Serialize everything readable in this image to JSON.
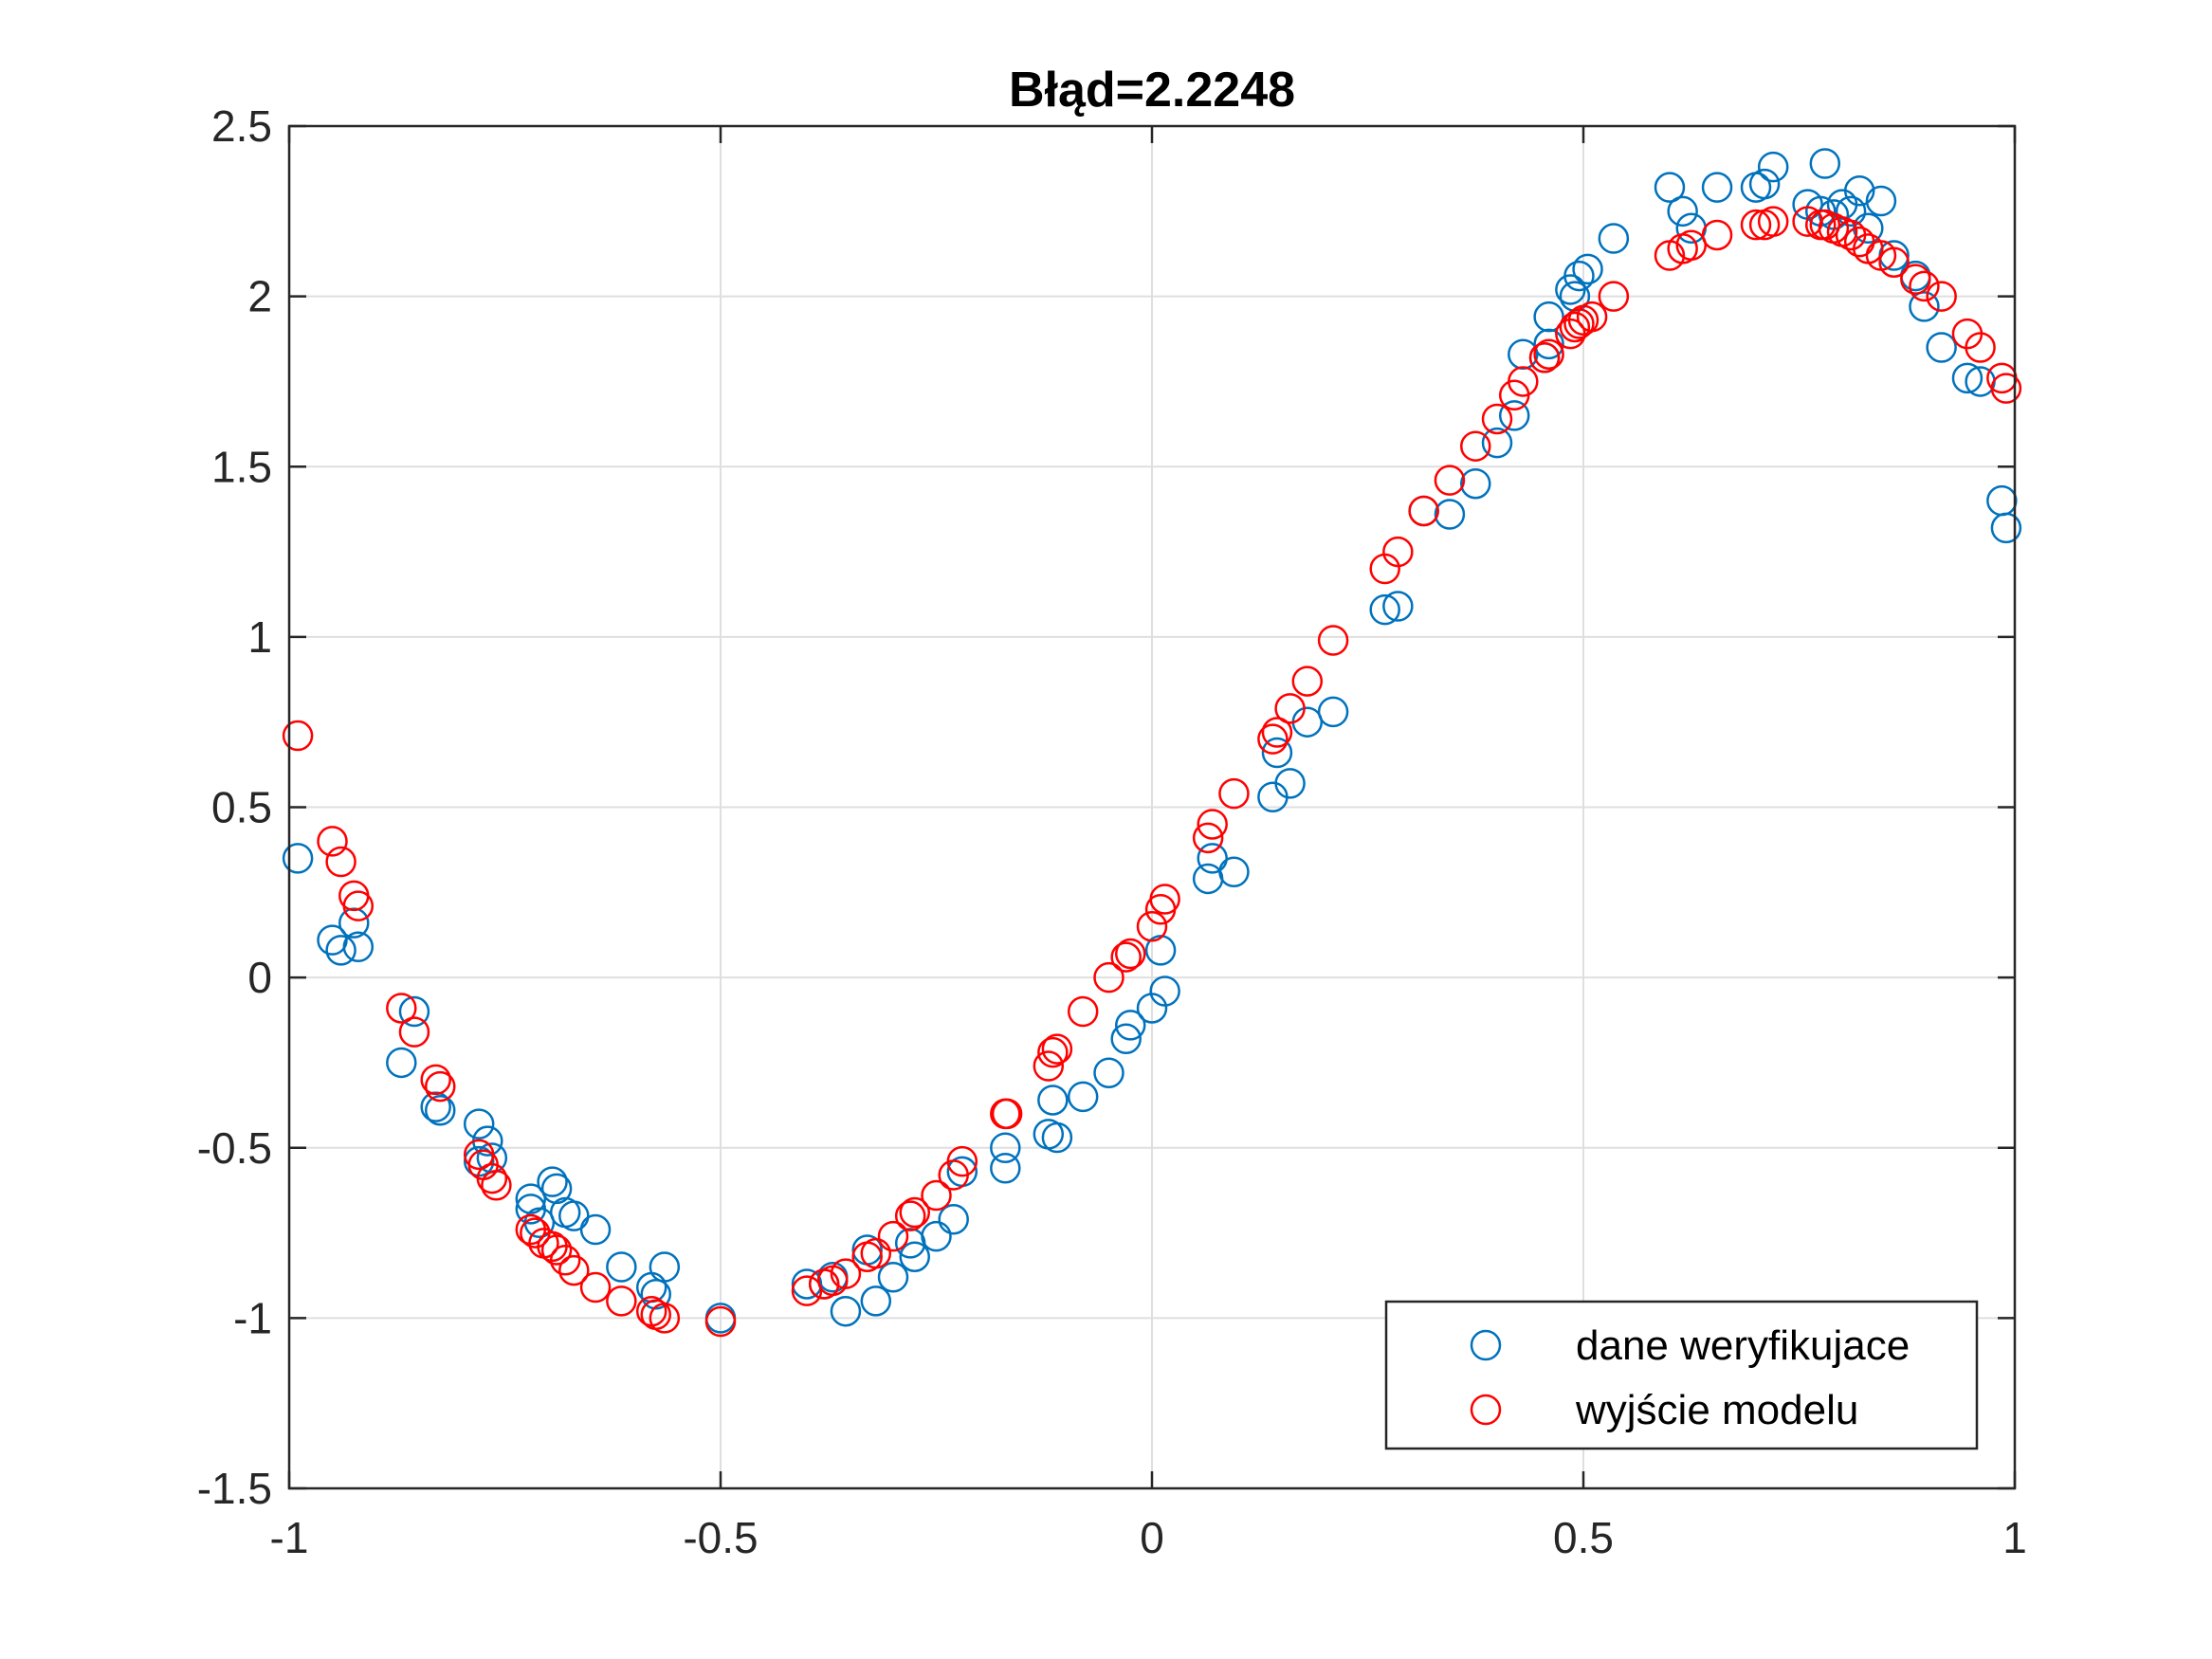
{
  "chart_data": {
    "type": "scatter",
    "title": "Błąd=2.2248",
    "xlabel": "",
    "ylabel": "",
    "xlim": [
      -1,
      1
    ],
    "ylim": [
      -1.5,
      2.5
    ],
    "xticks": [
      -1,
      -0.5,
      0,
      0.5,
      1
    ],
    "xtick_labels": [
      "-1",
      "-0.5",
      "0",
      "0.5",
      "1"
    ],
    "yticks": [
      -1.5,
      -1,
      -0.5,
      0,
      0.5,
      1,
      1.5,
      2,
      2.5
    ],
    "ytick_labels": [
      "-1.5",
      "-1",
      "-0.5",
      "0",
      "0.5",
      "1",
      "1.5",
      "2",
      "2.5"
    ],
    "grid": true,
    "legend_position": "bottom-right",
    "series": [
      {
        "name": "dane weryfikujace",
        "color": "#0072BD",
        "marker": "circle",
        "points": [
          [
            -0.99,
            0.35
          ],
          [
            -0.95,
            0.11
          ],
          [
            -0.94,
            0.08
          ],
          [
            -0.925,
            0.16
          ],
          [
            -0.92,
            0.09
          ],
          [
            -0.87,
            -0.25
          ],
          [
            -0.855,
            -0.1
          ],
          [
            -0.83,
            -0.38
          ],
          [
            -0.825,
            -0.39
          ],
          [
            -0.78,
            -0.43
          ],
          [
            -0.77,
            -0.48
          ],
          [
            -0.765,
            -0.53
          ],
          [
            -0.78,
            -0.54
          ],
          [
            -0.72,
            -0.65
          ],
          [
            -0.72,
            -0.68
          ],
          [
            -0.71,
            -0.72
          ],
          [
            -0.695,
            -0.6
          ],
          [
            -0.69,
            -0.62
          ],
          [
            -0.68,
            -0.69
          ],
          [
            -0.67,
            -0.7
          ],
          [
            -0.645,
            -0.74
          ],
          [
            -0.615,
            -0.85
          ],
          [
            -0.58,
            -0.91
          ],
          [
            -0.575,
            -0.93
          ],
          [
            -0.565,
            -0.85
          ],
          [
            -0.5,
            -1.0
          ],
          [
            -0.4,
            -0.9
          ],
          [
            -0.38,
            -0.9
          ],
          [
            -0.37,
            -0.88
          ],
          [
            -0.355,
            -0.98
          ],
          [
            -0.33,
            -0.8
          ],
          [
            -0.32,
            -0.95
          ],
          [
            -0.3,
            -0.88
          ],
          [
            -0.28,
            -0.78
          ],
          [
            -0.275,
            -0.82
          ],
          [
            -0.25,
            -0.76
          ],
          [
            -0.23,
            -0.71
          ],
          [
            -0.22,
            -0.57
          ],
          [
            -0.17,
            -0.5
          ],
          [
            -0.17,
            -0.56
          ],
          [
            -0.12,
            -0.46
          ],
          [
            -0.115,
            -0.36
          ],
          [
            -0.11,
            -0.47
          ],
          [
            -0.08,
            -0.35
          ],
          [
            -0.05,
            -0.28
          ],
          [
            -0.03,
            -0.18
          ],
          [
            -0.025,
            -0.14
          ],
          [
            0.0,
            -0.09
          ],
          [
            0.01,
            0.08
          ],
          [
            0.015,
            -0.04
          ],
          [
            0.065,
            0.29
          ],
          [
            0.07,
            0.35
          ],
          [
            0.095,
            0.31
          ],
          [
            0.14,
            0.53
          ],
          [
            0.145,
            0.66
          ],
          [
            0.16,
            0.57
          ],
          [
            0.18,
            0.75
          ],
          [
            0.21,
            0.78
          ],
          [
            0.27,
            1.08
          ],
          [
            0.285,
            1.09
          ],
          [
            0.315,
            1.37
          ],
          [
            0.345,
            1.36
          ],
          [
            0.375,
            1.45
          ],
          [
            0.4,
            1.57
          ],
          [
            0.42,
            1.65
          ],
          [
            0.43,
            1.83
          ],
          [
            0.455,
            1.82
          ],
          [
            0.46,
            1.86
          ],
          [
            0.46,
            1.94
          ],
          [
            0.485,
            2.02
          ],
          [
            0.49,
            2.0
          ],
          [
            0.495,
            2.06
          ],
          [
            0.505,
            2.08
          ],
          [
            0.535,
            2.17
          ],
          [
            0.6,
            2.32
          ],
          [
            0.615,
            2.25
          ],
          [
            0.625,
            2.2
          ],
          [
            0.655,
            2.32
          ],
          [
            0.7,
            2.32
          ],
          [
            0.71,
            2.33
          ],
          [
            0.72,
            2.38
          ],
          [
            0.76,
            2.27
          ],
          [
            0.775,
            2.25
          ],
          [
            0.78,
            2.39
          ],
          [
            0.79,
            2.24
          ],
          [
            0.8,
            2.27
          ],
          [
            0.81,
            2.25
          ],
          [
            0.82,
            2.31
          ],
          [
            0.83,
            2.2
          ],
          [
            0.845,
            2.28
          ],
          [
            0.86,
            2.12
          ],
          [
            0.885,
            2.06
          ],
          [
            0.895,
            1.97
          ],
          [
            0.915,
            1.85
          ],
          [
            0.945,
            1.76
          ],
          [
            0.96,
            1.75
          ],
          [
            0.985,
            1.4
          ],
          [
            0.99,
            1.32
          ]
        ]
      },
      {
        "name": "wyjście modelu",
        "color": "#FF0000",
        "marker": "circle",
        "points": [
          [
            -0.99,
            0.71
          ],
          [
            -0.95,
            0.4
          ],
          [
            -0.94,
            0.34
          ],
          [
            -0.925,
            0.24
          ],
          [
            -0.92,
            0.21
          ],
          [
            -0.87,
            -0.09
          ],
          [
            -0.855,
            -0.16
          ],
          [
            -0.83,
            -0.3
          ],
          [
            -0.825,
            -0.32
          ],
          [
            -0.78,
            -0.52
          ],
          [
            -0.775,
            -0.55
          ],
          [
            -0.765,
            -0.59
          ],
          [
            -0.76,
            -0.61
          ],
          [
            -0.72,
            -0.74
          ],
          [
            -0.715,
            -0.75
          ],
          [
            -0.705,
            -0.78
          ],
          [
            -0.695,
            -0.79
          ],
          [
            -0.69,
            -0.8
          ],
          [
            -0.68,
            -0.83
          ],
          [
            -0.67,
            -0.86
          ],
          [
            -0.645,
            -0.91
          ],
          [
            -0.615,
            -0.95
          ],
          [
            -0.58,
            -0.98
          ],
          [
            -0.575,
            -0.99
          ],
          [
            -0.565,
            -1.0
          ],
          [
            -0.5,
            -1.01
          ],
          [
            -0.4,
            -0.92
          ],
          [
            -0.38,
            -0.9
          ],
          [
            -0.37,
            -0.89
          ],
          [
            -0.355,
            -0.87
          ],
          [
            -0.33,
            -0.82
          ],
          [
            -0.32,
            -0.81
          ],
          [
            -0.3,
            -0.76
          ],
          [
            -0.28,
            -0.7
          ],
          [
            -0.275,
            -0.69
          ],
          [
            -0.25,
            -0.64
          ],
          [
            -0.23,
            -0.58
          ],
          [
            -0.22,
            -0.54
          ],
          [
            -0.17,
            -0.4
          ],
          [
            -0.168,
            -0.4
          ],
          [
            -0.12,
            -0.26
          ],
          [
            -0.115,
            -0.22
          ],
          [
            -0.11,
            -0.21
          ],
          [
            -0.08,
            -0.1
          ],
          [
            -0.05,
            0.0
          ],
          [
            -0.03,
            0.06
          ],
          [
            -0.025,
            0.07
          ],
          [
            0.0,
            0.15
          ],
          [
            0.01,
            0.2
          ],
          [
            0.015,
            0.23
          ],
          [
            0.065,
            0.41
          ],
          [
            0.07,
            0.45
          ],
          [
            0.095,
            0.54
          ],
          [
            0.14,
            0.7
          ],
          [
            0.145,
            0.72
          ],
          [
            0.16,
            0.79
          ],
          [
            0.18,
            0.87
          ],
          [
            0.21,
            0.99
          ],
          [
            0.27,
            1.2
          ],
          [
            0.285,
            1.25
          ],
          [
            0.315,
            1.37
          ],
          [
            0.345,
            1.46
          ],
          [
            0.375,
            1.56
          ],
          [
            0.4,
            1.64
          ],
          [
            0.42,
            1.71
          ],
          [
            0.43,
            1.75
          ],
          [
            0.455,
            1.82
          ],
          [
            0.46,
            1.83
          ],
          [
            0.485,
            1.89
          ],
          [
            0.49,
            1.91
          ],
          [
            0.495,
            1.92
          ],
          [
            0.5,
            1.93
          ],
          [
            0.51,
            1.94
          ],
          [
            0.535,
            2.0
          ],
          [
            0.6,
            2.12
          ],
          [
            0.615,
            2.14
          ],
          [
            0.625,
            2.15
          ],
          [
            0.655,
            2.18
          ],
          [
            0.7,
            2.21
          ],
          [
            0.71,
            2.21
          ],
          [
            0.72,
            2.22
          ],
          [
            0.76,
            2.22
          ],
          [
            0.775,
            2.21
          ],
          [
            0.78,
            2.21
          ],
          [
            0.79,
            2.2
          ],
          [
            0.8,
            2.19
          ],
          [
            0.81,
            2.18
          ],
          [
            0.82,
            2.16
          ],
          [
            0.83,
            2.14
          ],
          [
            0.845,
            2.12
          ],
          [
            0.86,
            2.1
          ],
          [
            0.885,
            2.05
          ],
          [
            0.895,
            2.03
          ],
          [
            0.915,
            2.0
          ],
          [
            0.945,
            1.89
          ],
          [
            0.96,
            1.85
          ],
          [
            0.985,
            1.76
          ],
          [
            0.99,
            1.73
          ]
        ]
      }
    ]
  }
}
